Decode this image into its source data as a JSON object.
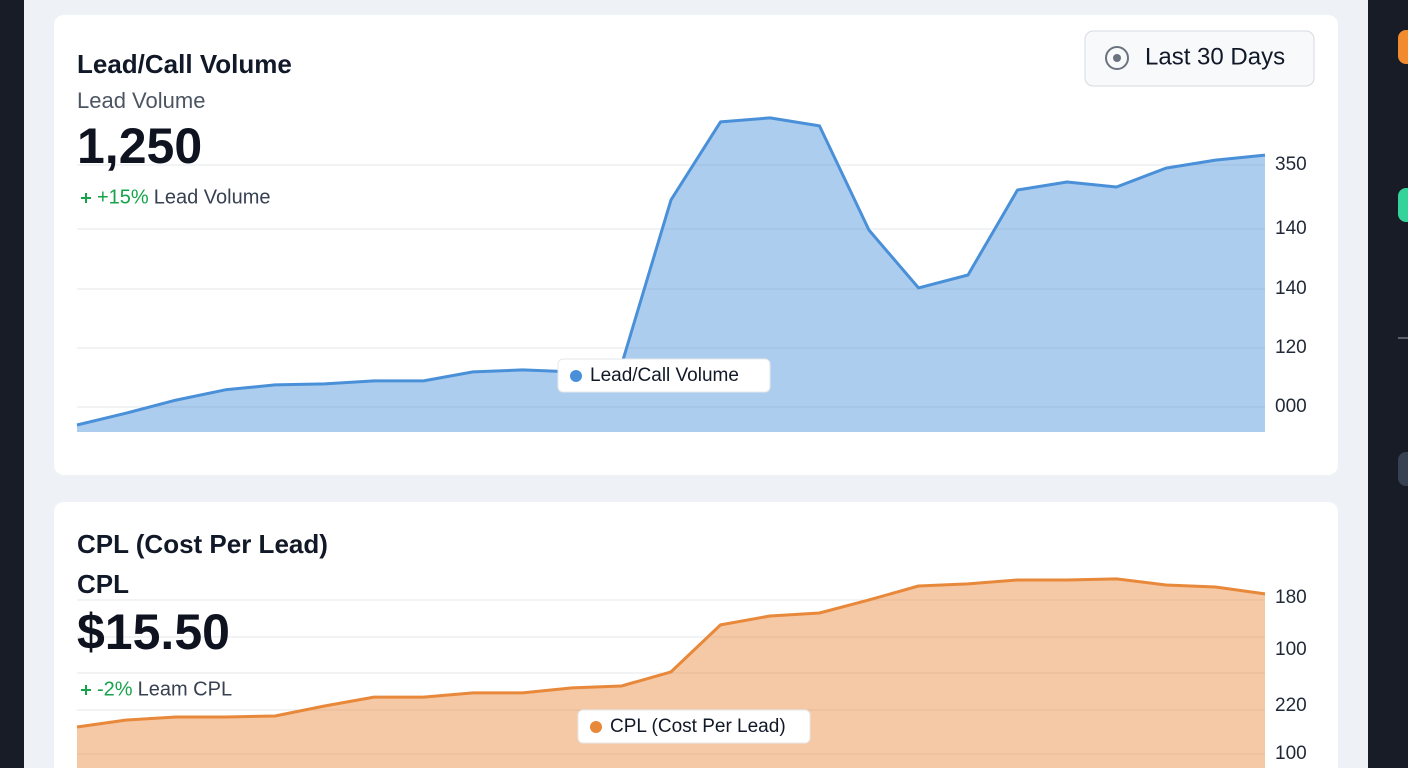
{
  "filter": "Last 30 Days",
  "cards": [
    {
      "title": "Lead/Call Volume",
      "metric_label": "Lead Volume",
      "metric_value": "1,250",
      "delta": "+15%",
      "delta_label": "Lead Volume",
      "y_labels": [
        "350",
        "140",
        "140",
        "120",
        "000"
      ],
      "chart_data": {
        "type": "area",
        "ylim": [
          0,
          100
        ],
        "series": [
          {
            "name": "Lead/Call Volume",
            "color": "#4a90d9",
            "values": [
              2.1,
              5.7,
              9.6,
              12.7,
              14.2,
              14.5,
              15.4,
              15.4,
              18.1,
              18.7,
              18.1,
              20.2,
              69.9,
              93.4,
              94.6,
              92.2,
              60.8,
              43.4,
              47.3,
              72.9,
              75.3,
              73.8,
              79.5,
              81.9,
              83.4
            ]
          }
        ]
      }
    },
    {
      "title": "CPL (Cost Per Lead)",
      "metric_label": "CPL",
      "metric_value": "$15.50",
      "delta": "-2%",
      "delta_label": "Leam CPL",
      "y_labels": [
        "180",
        "100",
        "220",
        "100"
      ],
      "chart_data": {
        "type": "area",
        "ylim": [
          0,
          100
        ],
        "series": [
          {
            "name": "CPL (Cost Per Lead)",
            "color": "#e8883a",
            "values": [
              19.7,
              23.1,
              24.5,
              24.5,
              25.0,
              29.8,
              34.1,
              34.1,
              36.1,
              36.1,
              38.5,
              39.4,
              46.2,
              68.8,
              73.1,
              74.5,
              80.8,
              87.5,
              88.5,
              90.4,
              90.4,
              90.9,
              88.0,
              87.0,
              83.7
            ]
          }
        ]
      }
    }
  ]
}
